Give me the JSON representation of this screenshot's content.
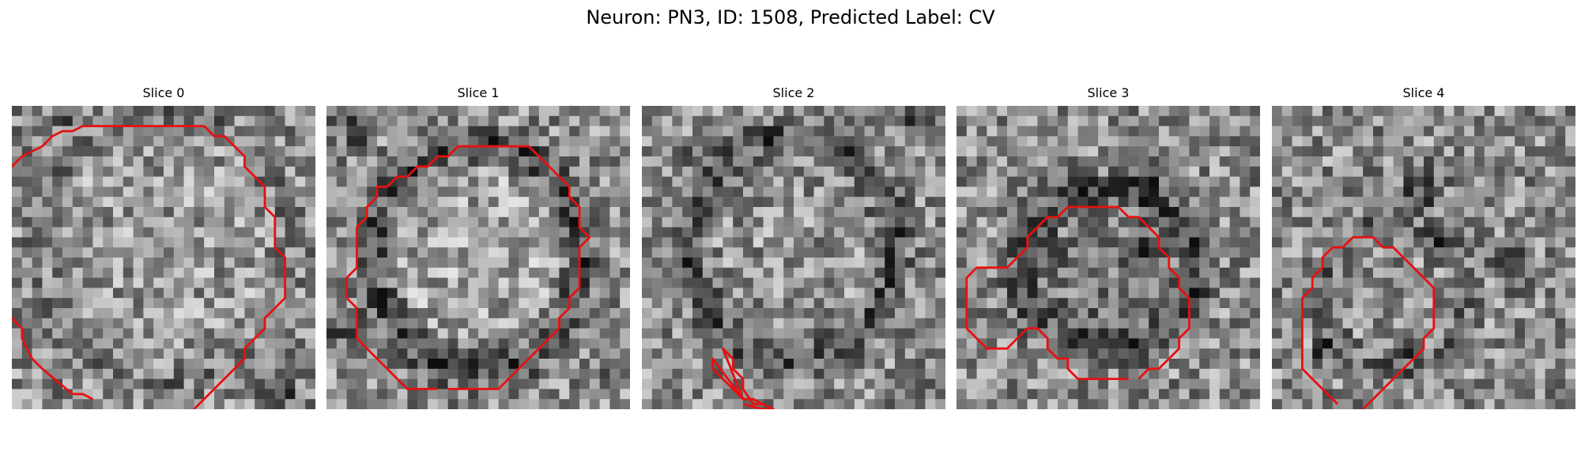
{
  "figure": {
    "title": "Neuron: PN3, ID: 1508, Predicted Label: CV"
  },
  "panels": [
    {
      "title": "Slice 0",
      "contour": [
        [
          9,
          -0.5
        ],
        [
          8,
          -1
        ],
        [
          6,
          -1
        ],
        [
          3,
          -4
        ],
        [
          2,
          -4
        ],
        [
          1,
          -5
        ],
        [
          1,
          -6
        ],
        [
          0,
          -7
        ],
        [
          -1,
          -7
        ],
        [
          -2,
          -8
        ],
        [
          -3,
          -9
        ],
        [
          -3,
          -12
        ],
        [
          -4,
          -13
        ],
        [
          -4,
          -14
        ],
        [
          -3,
          -15
        ],
        [
          -3,
          -18
        ],
        [
          -2,
          -19
        ],
        [
          -2,
          -20
        ],
        [
          -1,
          -21
        ],
        [
          0,
          -21
        ],
        [
          1,
          -22
        ],
        [
          2,
          -22
        ],
        [
          3,
          -23
        ],
        [
          5,
          -23
        ],
        [
          6,
          -24
        ],
        [
          6,
          -25
        ],
        [
          7,
          -25
        ],
        [
          8,
          -26
        ],
        [
          11,
          -26
        ],
        [
          12,
          -27
        ],
        [
          19,
          -27
        ],
        [
          20,
          -26
        ],
        [
          21,
          -26
        ],
        [
          22,
          -25
        ],
        [
          23,
          -25
        ],
        [
          24,
          -24
        ],
        [
          25,
          -23
        ],
        [
          25,
          -22
        ],
        [
          26,
          -21
        ],
        [
          27,
          -20
        ],
        [
          27,
          -18
        ],
        [
          28,
          -17
        ],
        [
          28,
          -14
        ],
        [
          29,
          -13
        ],
        [
          29,
          -9
        ],
        [
          28,
          -8
        ],
        [
          27,
          -7
        ],
        [
          27,
          -6
        ],
        [
          26,
          -5
        ],
        [
          25,
          -4
        ],
        [
          25,
          -3
        ],
        [
          24,
          -2
        ],
        [
          23,
          -1
        ],
        [
          22,
          0
        ],
        [
          21,
          1
        ]
      ]
    },
    {
      "title": "Slice 1",
      "contour": [
        [
          5,
          -0.5
        ],
        [
          5,
          -1
        ],
        [
          4,
          -2
        ],
        [
          3,
          -3
        ],
        [
          3,
          -6
        ],
        [
          2,
          -7
        ],
        [
          2,
          -9
        ],
        [
          1,
          -10
        ],
        [
          1,
          -14
        ],
        [
          2,
          -15
        ],
        [
          2,
          -16
        ],
        [
          3,
          -17
        ],
        [
          3,
          -18
        ],
        [
          4,
          -19
        ],
        [
          4,
          -20
        ],
        [
          5,
          -21
        ],
        [
          6,
          -21
        ],
        [
          7,
          -22
        ],
        [
          9,
          -22
        ],
        [
          10,
          -23
        ],
        [
          11,
          -23
        ],
        [
          12,
          -24
        ],
        [
          13,
          -24
        ],
        [
          14,
          -25
        ],
        [
          15,
          -25
        ],
        [
          16,
          -26
        ],
        [
          20,
          -26
        ],
        [
          21,
          -25
        ],
        [
          22,
          -24
        ],
        [
          23,
          -23
        ],
        [
          24,
          -22
        ],
        [
          24,
          -21
        ],
        [
          25,
          -20
        ],
        [
          25,
          -18
        ],
        [
          26,
          -17
        ],
        [
          26,
          -16
        ],
        [
          27,
          -15
        ],
        [
          26,
          -14
        ],
        [
          26,
          -10
        ],
        [
          25,
          -9
        ],
        [
          25,
          -8
        ],
        [
          24,
          -7
        ],
        [
          24,
          -6
        ],
        [
          23,
          -5
        ],
        [
          22,
          -4
        ],
        [
          21,
          -3
        ],
        [
          20,
          -2
        ],
        [
          19,
          -2
        ],
        [
          18,
          -1
        ],
        [
          9,
          -1
        ],
        [
          8,
          -2
        ],
        [
          7,
          -2
        ],
        [
          6,
          -3
        ],
        [
          5,
          -4
        ],
        [
          4,
          -5
        ],
        [
          4,
          -6
        ]
      ]
    },
    {
      "title": "Slice 2",
      "contour": [
        [
          13,
          0
        ],
        [
          12,
          -1
        ],
        [
          11,
          -1
        ],
        [
          10,
          -2
        ],
        [
          10,
          -3
        ],
        [
          9,
          -4
        ],
        [
          9,
          -5
        ],
        [
          8,
          -6
        ],
        [
          7,
          -6
        ],
        [
          6,
          -5
        ],
        [
          5,
          -4
        ],
        [
          4,
          -4
        ],
        [
          3,
          -3
        ],
        [
          3,
          -1
        ],
        [
          2,
          -1
        ],
        [
          1,
          -0.5
        ]
      ]
    },
    {
      "title": "Slice 3",
      "contour": [
        [
          13,
          -3
        ],
        [
          12,
          -4
        ],
        [
          11,
          -5
        ],
        [
          10,
          -6
        ],
        [
          9,
          -7
        ],
        [
          9,
          -8
        ],
        [
          8,
          -9
        ],
        [
          7,
          -8
        ],
        [
          6,
          -8
        ],
        [
          5,
          -7
        ],
        [
          4,
          -7
        ],
        [
          3,
          -6
        ],
        [
          3,
          -5
        ],
        [
          2,
          -5
        ],
        [
          1,
          -4
        ],
        [
          1,
          -3
        ],
        [
          2,
          -2
        ],
        [
          2,
          -1
        ],
        [
          3,
          0
        ]
      ]
    },
    {
      "title": "Slice 4",
      "contour": [
        [
          11,
          -0.5
        ],
        [
          12,
          -1
        ],
        [
          13,
          -2
        ],
        [
          14,
          -3
        ],
        [
          15,
          -4
        ],
        [
          16,
          -5
        ],
        [
          16,
          -6
        ],
        [
          17,
          -7
        ],
        [
          17,
          -9
        ],
        [
          16,
          -10
        ],
        [
          16,
          -11
        ],
        [
          15,
          -12
        ],
        [
          14,
          -13
        ],
        [
          13,
          -14
        ],
        [
          12,
          -15
        ],
        [
          11,
          -15
        ],
        [
          10,
          -16
        ],
        [
          9,
          -16
        ],
        [
          8,
          -15
        ],
        [
          7,
          -14
        ],
        [
          6,
          -13
        ],
        [
          5,
          -12
        ],
        [
          5,
          -11
        ],
        [
          4,
          -10
        ],
        [
          4,
          -8
        ],
        [
          3,
          -7
        ],
        [
          3,
          -6
        ],
        [
          2,
          -5
        ],
        [
          2,
          -4
        ],
        [
          1,
          -3
        ],
        [
          1,
          -2
        ],
        [
          2,
          -1
        ]
      ]
    }
  ]
}
